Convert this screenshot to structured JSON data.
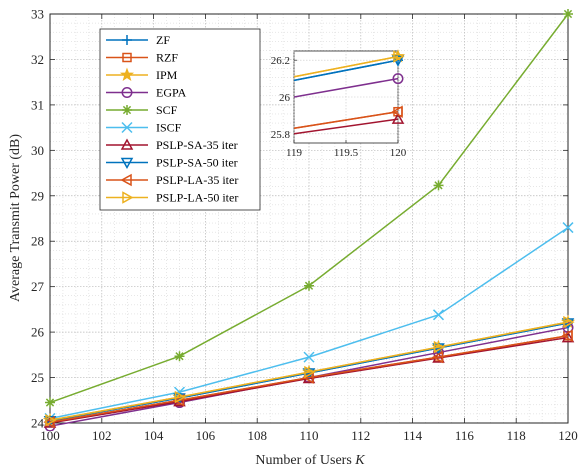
{
  "chart_data": [
    {
      "type": "line",
      "xlabel": "Number of Users",
      "xlabel_symbol": "K",
      "ylabel": "Average Transmit Power (dB)",
      "xlim": [
        100,
        120
      ],
      "ylim": [
        24,
        33
      ],
      "grid": true,
      "legend_position": "top-left",
      "x_ticks": [
        "100",
        "102",
        "104",
        "106",
        "108",
        "110",
        "112",
        "114",
        "116",
        "118",
        "120"
      ],
      "y_ticks": [
        "24",
        "25",
        "26",
        "27",
        "28",
        "29",
        "30",
        "31",
        "32",
        "33"
      ],
      "x": [
        100,
        105,
        110,
        115,
        120
      ],
      "series": [
        {
          "name": "ZF",
          "color": "#0072BD",
          "marker": "plus",
          "values": [
            24.05,
            24.55,
            25.1,
            25.65,
            26.2
          ]
        },
        {
          "name": "RZF",
          "color": "#D95319",
          "marker": "square",
          "values": [
            24.02,
            24.5,
            25.0,
            25.45,
            25.92
          ]
        },
        {
          "name": "IPM",
          "color": "#EDB120",
          "marker": "star",
          "values": [
            24.06,
            24.57,
            25.12,
            25.67,
            26.22
          ]
        },
        {
          "name": "EGPA",
          "color": "#7E2F8E",
          "marker": "circle",
          "values": [
            23.93,
            24.45,
            25.0,
            25.55,
            26.1
          ]
        },
        {
          "name": "SCF",
          "color": "#77AC30",
          "marker": "asterisk",
          "values": [
            24.45,
            25.47,
            27.02,
            29.23,
            33.0
          ]
        },
        {
          "name": "ISCF",
          "color": "#4DBEEE",
          "marker": "cross",
          "values": [
            24.1,
            24.68,
            25.45,
            26.38,
            28.3
          ]
        },
        {
          "name": "PSLP-SA-35 iter",
          "color": "#A2142F",
          "marker": "triangle-up",
          "values": [
            24.0,
            24.47,
            24.98,
            25.43,
            25.88
          ]
        },
        {
          "name": "PSLP-SA-50 iter",
          "color": "#0072BD",
          "marker": "triangle-down",
          "values": [
            24.05,
            24.55,
            25.1,
            25.65,
            26.2
          ]
        },
        {
          "name": "PSLP-LA-35 iter",
          "color": "#D95319",
          "marker": "triangle-left",
          "values": [
            24.02,
            24.5,
            25.0,
            25.45,
            25.92
          ]
        },
        {
          "name": "PSLP-LA-50 iter",
          "color": "#EDB120",
          "marker": "triangle-right",
          "values": [
            24.06,
            24.57,
            25.12,
            25.67,
            26.22
          ]
        }
      ]
    },
    {
      "type": "line",
      "role": "inset",
      "xlim": [
        119,
        120
      ],
      "ylim": [
        25.75,
        26.25
      ],
      "x_ticks": [
        "119",
        "119.5",
        "120"
      ],
      "y_ticks": [
        "25.8",
        "26",
        "26.2"
      ],
      "x": [
        119,
        120
      ],
      "series": [
        {
          "name": "ZF",
          "values": [
            26.09,
            26.2
          ]
        },
        {
          "name": "RZF",
          "values": [
            25.83,
            25.92
          ]
        },
        {
          "name": "IPM",
          "values": [
            26.11,
            26.22
          ]
        },
        {
          "name": "EGPA",
          "values": [
            26.0,
            26.1
          ]
        },
        {
          "name": "PSLP-SA-35 iter",
          "values": [
            25.8,
            25.88
          ]
        },
        {
          "name": "PSLP-SA-50 iter",
          "values": [
            26.09,
            26.2
          ]
        },
        {
          "name": "PSLP-LA-35 iter",
          "values": [
            25.83,
            25.92
          ]
        },
        {
          "name": "PSLP-LA-50 iter",
          "values": [
            26.11,
            26.22
          ]
        }
      ]
    }
  ]
}
